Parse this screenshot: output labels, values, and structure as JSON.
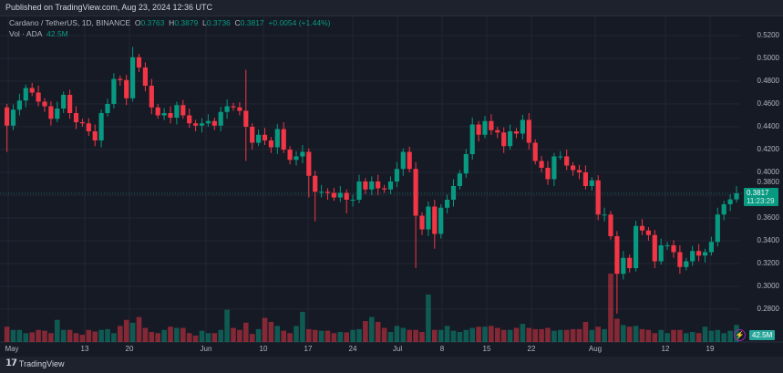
{
  "published": "Published on TradingView.com, Aug 23, 2024 12:36 UTC",
  "legend": {
    "symbol": "Cardano / TetherUS, 1D, BINANCE",
    "o_label": "O",
    "o": "0.3763",
    "h_label": "H",
    "h": "0.3879",
    "l_label": "L",
    "l": "0.3736",
    "c_label": "C",
    "c": "0.3817",
    "change": "+0.0054 (+1.44%)",
    "vol_label": "Vol · ADA",
    "vol": "42.5M"
  },
  "last_price": {
    "price": "0.3817",
    "countdown": "11:23:29"
  },
  "volume_badge": "42.5M",
  "footer": {
    "brand": "TradingView",
    "logo": "TV"
  },
  "colors": {
    "up": "#089981",
    "down": "#f23645",
    "background": "#161a25",
    "grid": "#232733"
  },
  "chart_data": {
    "type": "candlestick",
    "ylim": [
      0.27,
      0.525
    ],
    "grid": true,
    "price_ticks": [
      "0.5200",
      "0.5000",
      "0.4800",
      "0.4600",
      "0.4400",
      "0.4200",
      "0.4000",
      "0.3800",
      "0.3600",
      "0.3400",
      "0.3200",
      "0.3000",
      "0.2800"
    ],
    "date_ticks": [
      "May",
      "13",
      "20",
      "Jun",
      "10",
      "17",
      "24",
      "Jul",
      "8",
      "15",
      "22",
      "Aug",
      "12",
      "19"
    ],
    "first_open": 0.457,
    "close": [
      0.441,
      0.455,
      0.463,
      0.474,
      0.47,
      0.462,
      0.458,
      0.447,
      0.456,
      0.468,
      0.452,
      0.444,
      0.443,
      0.436,
      0.428,
      0.452,
      0.46,
      0.482,
      0.481,
      0.465,
      0.501,
      0.492,
      0.476,
      0.457,
      0.45,
      0.452,
      0.448,
      0.459,
      0.45,
      0.443,
      0.441,
      0.443,
      0.445,
      0.441,
      0.453,
      0.458,
      0.457,
      0.454,
      0.44,
      0.426,
      0.433,
      0.428,
      0.422,
      0.438,
      0.42,
      0.411,
      0.414,
      0.418,
      0.397,
      0.383,
      0.383,
      0.382,
      0.378,
      0.382,
      0.376,
      0.376,
      0.392,
      0.385,
      0.392,
      0.386,
      0.385,
      0.392,
      0.403,
      0.418,
      0.403,
      0.362,
      0.35,
      0.37,
      0.346,
      0.369,
      0.376,
      0.388,
      0.399,
      0.416,
      0.442,
      0.433,
      0.445,
      0.437,
      0.435,
      0.423,
      0.436,
      0.434,
      0.446,
      0.426,
      0.41,
      0.404,
      0.394,
      0.414,
      0.414,
      0.406,
      0.402,
      0.4,
      0.388,
      0.393,
      0.363,
      0.363,
      0.344,
      0.311,
      0.325,
      0.316,
      0.353,
      0.349,
      0.345,
      0.322,
      0.336,
      0.336,
      0.33,
      0.317,
      0.322,
      0.331,
      0.327,
      0.33,
      0.339,
      0.363,
      0.372,
      0.3763,
      0.3817
    ],
    "wick_overrides": [
      {
        "i": 0,
        "low": 0.418
      },
      {
        "i": 20,
        "high": 0.51
      },
      {
        "i": 17,
        "high": 0.487
      },
      {
        "i": 38,
        "high": 0.49,
        "low": 0.41
      },
      {
        "i": 48,
        "low": 0.378
      },
      {
        "i": 49,
        "low": 0.357
      },
      {
        "i": 54,
        "low": 0.364
      },
      {
        "i": 65,
        "low": 0.316
      },
      {
        "i": 68,
        "low": 0.333
      },
      {
        "i": 97,
        "low": 0.276
      },
      {
        "i": 99,
        "low": 0.312
      },
      {
        "i": 116,
        "high": 0.3879,
        "low": 0.3736
      }
    ],
    "volume_m": [
      38,
      30,
      30,
      22,
      24,
      30,
      28,
      22,
      55,
      30,
      30,
      22,
      18,
      30,
      26,
      30,
      32,
      22,
      40,
      55,
      48,
      62,
      35,
      25,
      22,
      30,
      38,
      35,
      35,
      22,
      16,
      28,
      22,
      22,
      30,
      80,
      35,
      30,
      48,
      20,
      32,
      60,
      50,
      40,
      28,
      22,
      40,
      75,
      32,
      30,
      28,
      28,
      22,
      25,
      24,
      30,
      32,
      52,
      62,
      50,
      35,
      25,
      40,
      35,
      30,
      30,
      25,
      118,
      30,
      30,
      40,
      28,
      25,
      30,
      35,
      38,
      38,
      40,
      35,
      30,
      30,
      35,
      45,
      35,
      32,
      32,
      35,
      28,
      30,
      30,
      32,
      32,
      50,
      30,
      38,
      32,
      170,
      58,
      42,
      38,
      40,
      32,
      30,
      22,
      30,
      22,
      30,
      30,
      22,
      25,
      22,
      38,
      28,
      30,
      22,
      28,
      42.5
    ]
  }
}
